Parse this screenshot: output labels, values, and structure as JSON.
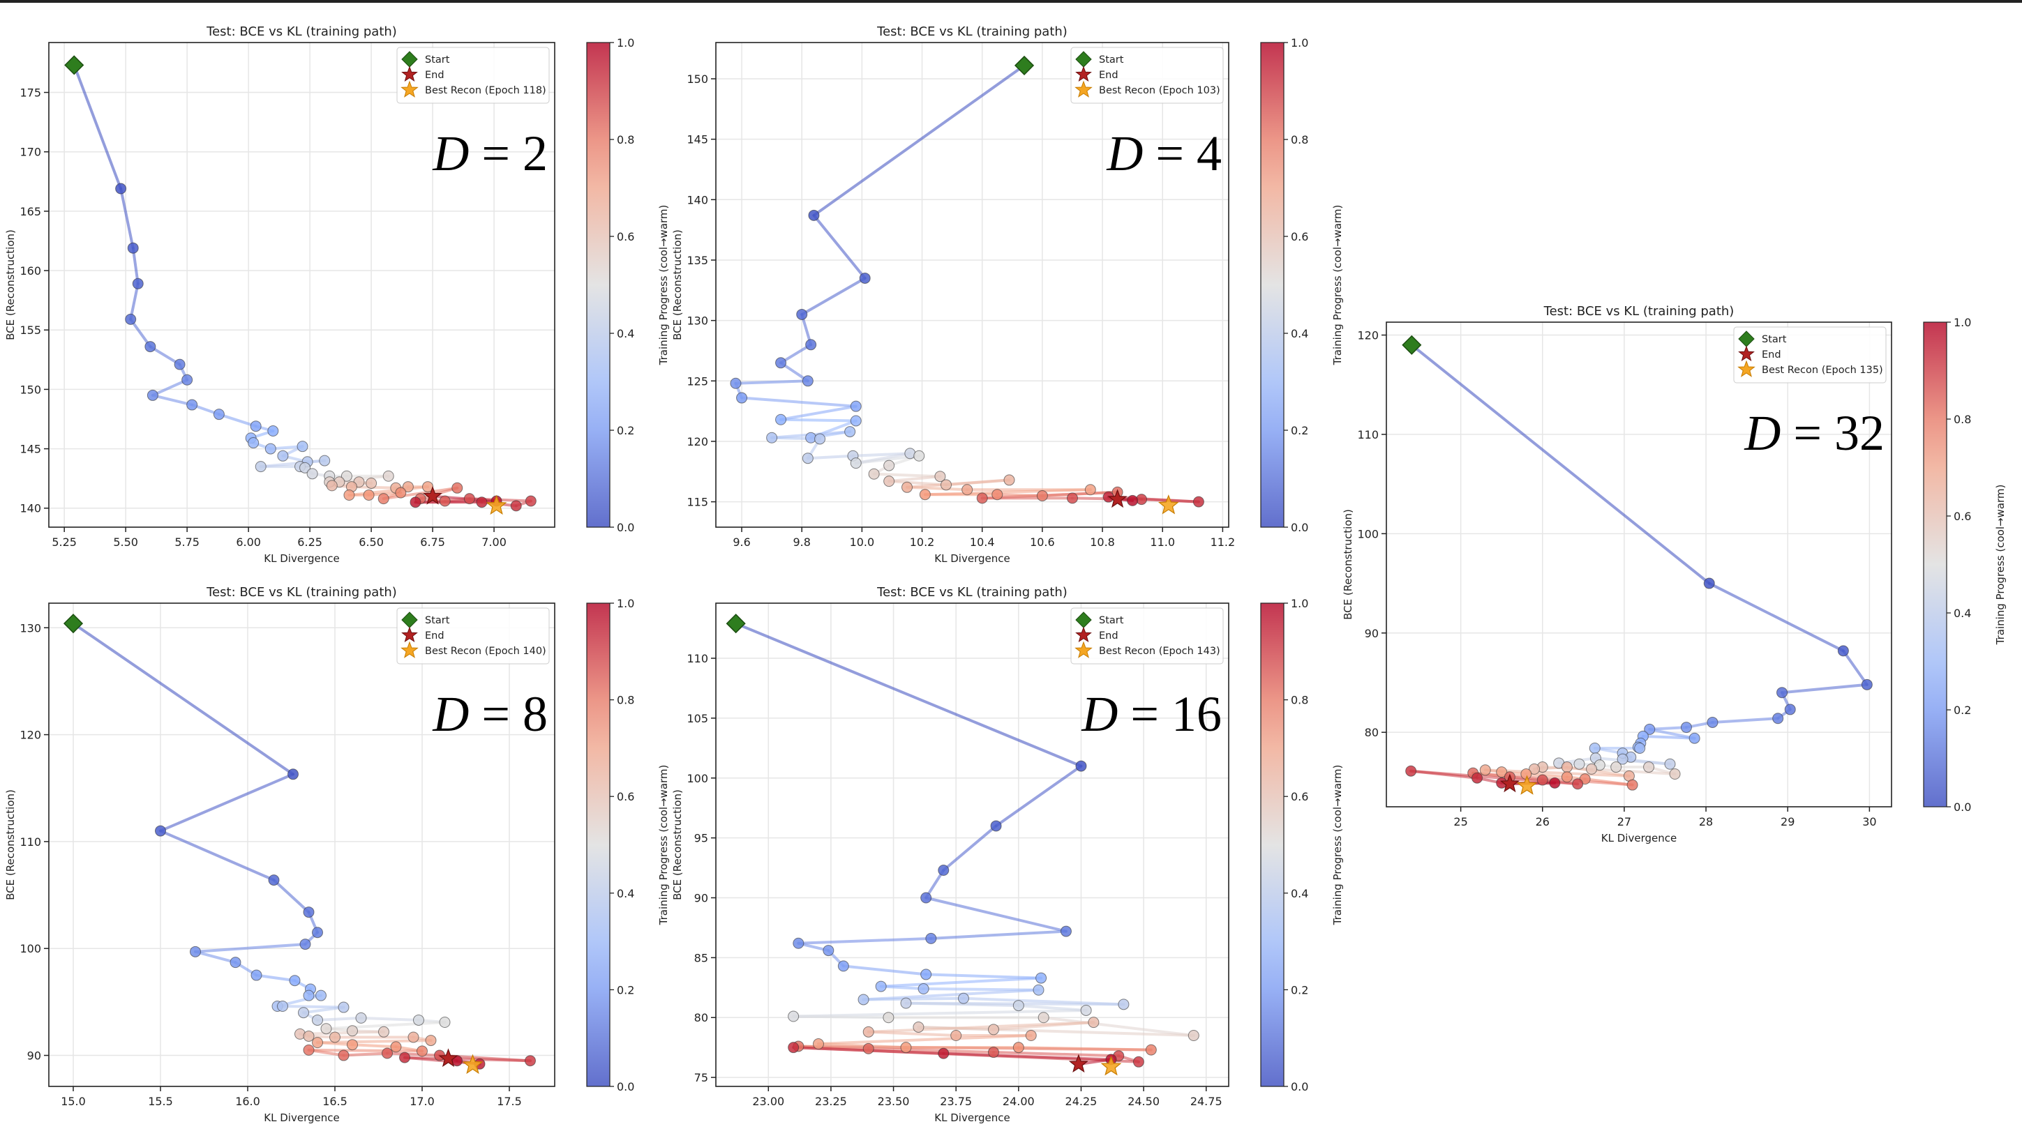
{
  "chart_data": [
    {
      "type": "line",
      "title": "Test: BCE vs KL (training path)",
      "xlabel": "KL Divergence",
      "ylabel": "BCE (Reconstruction)",
      "colorbar_label": "Training Progress (cool→warm)",
      "colorbar_ticks": [
        "0.0",
        "0.2",
        "0.4",
        "0.6",
        "0.8",
        "1.0"
      ],
      "colormap": "coolwarm",
      "label_var": "D",
      "label_eq": "= 2",
      "legend": {
        "start": "Start",
        "end": "End",
        "best": "Best Recon (Epoch 118)",
        "placement": "top-right"
      },
      "xlim": [
        5.187,
        7.247
      ],
      "ylim": [
        138.4,
        179.2
      ],
      "xticks": [
        5.25,
        5.5,
        5.75,
        6.0,
        6.25,
        6.5,
        6.75,
        7.0
      ],
      "xtick_labels": [
        "5.25",
        "5.50",
        "5.75",
        "6.00",
        "6.25",
        "6.50",
        "6.75",
        "7.00"
      ],
      "yticks": [
        140,
        145,
        150,
        155,
        160,
        165,
        170,
        175
      ],
      "grid": true,
      "best": [
        7.01,
        140.2
      ],
      "points": [
        [
          5.29,
          177.3
        ],
        [
          5.48,
          166.9
        ],
        [
          5.53,
          161.9
        ],
        [
          5.55,
          158.9
        ],
        [
          5.52,
          155.9
        ],
        [
          5.6,
          153.6
        ],
        [
          5.72,
          152.1
        ],
        [
          5.75,
          150.8
        ],
        [
          5.61,
          149.5
        ],
        [
          5.77,
          148.7
        ],
        [
          5.88,
          147.9
        ],
        [
          6.03,
          146.9
        ],
        [
          6.1,
          146.5
        ],
        [
          6.01,
          145.9
        ],
        [
          6.02,
          145.5
        ],
        [
          6.09,
          145.0
        ],
        [
          6.22,
          145.2
        ],
        [
          6.14,
          144.4
        ],
        [
          6.24,
          143.9
        ],
        [
          6.31,
          144.0
        ],
        [
          6.05,
          143.5
        ],
        [
          6.21,
          143.5
        ],
        [
          6.23,
          143.4
        ],
        [
          6.26,
          142.9
        ],
        [
          6.33,
          142.7
        ],
        [
          6.4,
          142.7
        ],
        [
          6.57,
          142.7
        ],
        [
          6.33,
          142.2
        ],
        [
          6.37,
          142.2
        ],
        [
          6.45,
          142.2
        ],
        [
          6.5,
          142.1
        ],
        [
          6.34,
          141.9
        ],
        [
          6.42,
          141.8
        ],
        [
          6.6,
          141.7
        ],
        [
          6.65,
          141.8
        ],
        [
          6.73,
          141.8
        ],
        [
          6.41,
          141.1
        ],
        [
          6.49,
          141.1
        ],
        [
          6.62,
          141.3
        ],
        [
          6.55,
          140.8
        ],
        [
          6.85,
          141.7
        ],
        [
          6.7,
          140.8
        ],
        [
          6.8,
          140.6
        ],
        [
          6.9,
          140.8
        ],
        [
          7.15,
          140.6
        ],
        [
          7.09,
          140.2
        ],
        [
          6.95,
          140.5
        ],
        [
          6.68,
          140.5
        ],
        [
          7.01,
          140.6
        ],
        [
          6.75,
          141.0
        ]
      ]
    },
    {
      "type": "line",
      "title": "Test: BCE vs KL (training path)",
      "xlabel": "KL Divergence",
      "ylabel": "BCE (Reconstruction)",
      "colorbar_label": "Training Progress (cool→warm)",
      "colorbar_ticks": [
        "0.0",
        "0.2",
        "0.4",
        "0.6",
        "0.8",
        "1.0"
      ],
      "colormap": "coolwarm",
      "label_var": "D",
      "label_eq": "= 4",
      "legend": {
        "start": "Start",
        "end": "End",
        "best": "Best Recon (Epoch 103)",
        "placement": "top-right"
      },
      "xlim": [
        9.514,
        11.22
      ],
      "ylim": [
        112.9,
        153.0
      ],
      "xticks": [
        9.6,
        9.8,
        10.0,
        10.2,
        10.4,
        10.6,
        10.8,
        11.0,
        11.2
      ],
      "xtick_labels": [
        "9.6",
        "9.8",
        "10.0",
        "10.2",
        "10.4",
        "10.6",
        "10.8",
        "11.0",
        "11.2"
      ],
      "yticks": [
        115,
        120,
        125,
        130,
        135,
        140,
        145,
        150
      ],
      "grid": true,
      "best": [
        11.02,
        114.7
      ],
      "points": [
        [
          10.54,
          151.1
        ],
        [
          9.84,
          138.7
        ],
        [
          10.01,
          133.5
        ],
        [
          9.8,
          130.5
        ],
        [
          9.83,
          128.0
        ],
        [
          9.73,
          126.5
        ],
        [
          9.82,
          125.0
        ],
        [
          9.58,
          124.8
        ],
        [
          9.6,
          123.6
        ],
        [
          9.98,
          122.9
        ],
        [
          9.73,
          121.8
        ],
        [
          9.98,
          121.7
        ],
        [
          9.83,
          120.3
        ],
        [
          9.96,
          120.8
        ],
        [
          9.7,
          120.3
        ],
        [
          9.86,
          120.2
        ],
        [
          9.82,
          118.6
        ],
        [
          9.97,
          118.8
        ],
        [
          10.16,
          119.0
        ],
        [
          9.98,
          118.2
        ],
        [
          10.19,
          118.8
        ],
        [
          10.09,
          118.0
        ],
        [
          10.04,
          117.3
        ],
        [
          10.26,
          117.1
        ],
        [
          10.09,
          116.7
        ],
        [
          10.28,
          116.4
        ],
        [
          10.49,
          116.8
        ],
        [
          10.15,
          116.2
        ],
        [
          10.35,
          116.0
        ],
        [
          10.76,
          116.0
        ],
        [
          10.21,
          115.6
        ],
        [
          10.45,
          115.6
        ],
        [
          10.6,
          115.5
        ],
        [
          10.85,
          115.8
        ],
        [
          10.4,
          115.3
        ],
        [
          10.7,
          115.3
        ],
        [
          10.93,
          115.2
        ],
        [
          11.12,
          115.0
        ],
        [
          10.82,
          115.4
        ],
        [
          10.9,
          115.1
        ],
        [
          10.85,
          115.2
        ]
      ]
    },
    {
      "type": "line",
      "title": "Test: BCE vs KL (training path)",
      "xlabel": "KL Divergence",
      "ylabel": "BCE (Reconstruction)",
      "colorbar_label": "Training Progress (cool→warm)",
      "colorbar_ticks": [
        "0.0",
        "0.2",
        "0.4",
        "0.6",
        "0.8",
        "1.0"
      ],
      "colormap": "coolwarm",
      "label_var": "D",
      "label_eq": "= 8",
      "legend": {
        "start": "Start",
        "end": "End",
        "best": "Best Recon (Epoch 140)",
        "placement": "top-right"
      },
      "xlim": [
        14.86,
        17.76
      ],
      "ylim": [
        87.1,
        132.3
      ],
      "xticks": [
        15.0,
        15.5,
        16.0,
        16.5,
        17.0,
        17.5
      ],
      "xtick_labels": [
        "15.0",
        "15.5",
        "16.0",
        "16.5",
        "17.0",
        "17.5"
      ],
      "yticks": [
        90,
        100,
        110,
        120,
        130
      ],
      "grid": true,
      "best": [
        17.29,
        89.1
      ],
      "points": [
        [
          15.0,
          130.4
        ],
        [
          16.26,
          116.3
        ],
        [
          15.5,
          111.0
        ],
        [
          16.15,
          106.4
        ],
        [
          16.35,
          103.4
        ],
        [
          16.4,
          101.5
        ],
        [
          16.33,
          100.4
        ],
        [
          15.7,
          99.7
        ],
        [
          15.93,
          98.7
        ],
        [
          16.05,
          97.5
        ],
        [
          16.27,
          97.0
        ],
        [
          16.36,
          96.2
        ],
        [
          16.35,
          95.6
        ],
        [
          16.42,
          95.6
        ],
        [
          16.17,
          94.6
        ],
        [
          16.2,
          94.6
        ],
        [
          16.55,
          94.5
        ],
        [
          16.32,
          94.0
        ],
        [
          16.4,
          93.3
        ],
        [
          16.65,
          93.5
        ],
        [
          16.98,
          93.3
        ],
        [
          17.13,
          93.1
        ],
        [
          16.45,
          92.5
        ],
        [
          16.6,
          92.3
        ],
        [
          16.78,
          92.2
        ],
        [
          16.3,
          92.0
        ],
        [
          16.35,
          91.8
        ],
        [
          16.5,
          91.7
        ],
        [
          16.95,
          91.7
        ],
        [
          17.05,
          91.4
        ],
        [
          16.4,
          91.2
        ],
        [
          16.6,
          91.0
        ],
        [
          16.85,
          90.8
        ],
        [
          17.0,
          90.4
        ],
        [
          16.35,
          90.5
        ],
        [
          16.55,
          90.0
        ],
        [
          16.8,
          90.2
        ],
        [
          17.1,
          90.0
        ],
        [
          17.62,
          89.5
        ],
        [
          16.9,
          89.8
        ],
        [
          17.33,
          89.2
        ],
        [
          17.2,
          89.5
        ],
        [
          17.15,
          89.7
        ]
      ]
    },
    {
      "type": "line",
      "title": "Test: BCE vs KL (training path)",
      "xlabel": "KL Divergence",
      "ylabel": "BCE (Reconstruction)",
      "colorbar_label": "Training Progress (cool→warm)",
      "colorbar_ticks": [
        "0.0",
        "0.2",
        "0.4",
        "0.6",
        "0.8",
        "1.0"
      ],
      "colormap": "coolwarm",
      "label_var": "D",
      "label_eq": "= 16",
      "legend": {
        "start": "Start",
        "end": "End",
        "best": "Best Recon (Epoch 143)",
        "placement": "top-right"
      },
      "xlim": [
        22.79,
        24.84
      ],
      "ylim": [
        74.25,
        114.6
      ],
      "xticks": [
        23.0,
        23.25,
        23.5,
        23.75,
        24.0,
        24.25,
        24.5,
        24.75
      ],
      "xtick_labels": [
        "23.00",
        "23.25",
        "23.50",
        "23.75",
        "24.00",
        "24.25",
        "24.50",
        "24.75"
      ],
      "yticks": [
        75,
        80,
        85,
        90,
        95,
        100,
        105,
        110
      ],
      "grid": true,
      "best": [
        24.37,
        75.9
      ],
      "points": [
        [
          22.87,
          112.9
        ],
        [
          24.25,
          101.0
        ],
        [
          23.91,
          96.0
        ],
        [
          23.7,
          92.3
        ],
        [
          23.63,
          90.0
        ],
        [
          24.19,
          87.2
        ],
        [
          23.65,
          86.6
        ],
        [
          23.12,
          86.2
        ],
        [
          23.24,
          85.6
        ],
        [
          23.3,
          84.3
        ],
        [
          23.63,
          83.6
        ],
        [
          24.09,
          83.3
        ],
        [
          23.45,
          82.6
        ],
        [
          23.62,
          82.4
        ],
        [
          24.08,
          82.3
        ],
        [
          23.38,
          81.5
        ],
        [
          23.78,
          81.6
        ],
        [
          24.42,
          81.1
        ],
        [
          23.55,
          81.2
        ],
        [
          24.0,
          81.0
        ],
        [
          24.27,
          80.6
        ],
        [
          23.1,
          80.1
        ],
        [
          23.48,
          80.0
        ],
        [
          24.1,
          80.0
        ],
        [
          24.7,
          78.5
        ],
        [
          23.6,
          79.2
        ],
        [
          23.9,
          79.0
        ],
        [
          24.3,
          79.6
        ],
        [
          23.4,
          78.8
        ],
        [
          23.75,
          78.5
        ],
        [
          24.05,
          78.5
        ],
        [
          23.2,
          77.8
        ],
        [
          23.55,
          77.5
        ],
        [
          24.0,
          77.5
        ],
        [
          24.53,
          77.3
        ],
        [
          23.12,
          77.6
        ],
        [
          23.4,
          77.4
        ],
        [
          23.9,
          77.1
        ],
        [
          24.4,
          76.8
        ],
        [
          24.48,
          76.3
        ],
        [
          23.1,
          77.5
        ],
        [
          23.7,
          77.0
        ],
        [
          24.37,
          76.5
        ],
        [
          24.24,
          76.1
        ]
      ]
    },
    {
      "type": "line",
      "title": "Test: BCE vs KL (training path)",
      "xlabel": "KL Divergence",
      "ylabel": "BCE (Reconstruction)",
      "colorbar_label": "Training Progress (cool→warm)",
      "colorbar_ticks": [
        "0.0",
        "0.2",
        "0.4",
        "0.6",
        "0.8",
        "1.0"
      ],
      "colormap": "coolwarm",
      "label_var": "D",
      "label_eq": "= 32",
      "legend": {
        "start": "Start",
        "end": "End",
        "best": "Best Recon (Epoch 135)",
        "placement": "top-right"
      },
      "xlim": [
        24.09,
        30.27
      ],
      "ylim": [
        72.5,
        121.3
      ],
      "xticks": [
        25,
        26,
        27,
        28,
        29,
        30
      ],
      "xtick_labels": [
        "25",
        "26",
        "27",
        "28",
        "29",
        "30"
      ],
      "yticks": [
        80,
        90,
        100,
        110,
        120
      ],
      "grid": true,
      "best": [
        25.81,
        74.6
      ],
      "points": [
        [
          24.4,
          119.0
        ],
        [
          28.04,
          95.0
        ],
        [
          29.68,
          88.2
        ],
        [
          29.97,
          84.8
        ],
        [
          28.93,
          84.0
        ],
        [
          29.03,
          82.3
        ],
        [
          28.88,
          81.4
        ],
        [
          28.08,
          81.0
        ],
        [
          27.76,
          80.5
        ],
        [
          27.31,
          80.3
        ],
        [
          27.86,
          79.4
        ],
        [
          27.23,
          79.6
        ],
        [
          27.2,
          78.9
        ],
        [
          27.17,
          78.5
        ],
        [
          27.19,
          78.4
        ],
        [
          26.64,
          78.4
        ],
        [
          26.98,
          77.9
        ],
        [
          27.08,
          77.5
        ],
        [
          26.98,
          77.3
        ],
        [
          27.56,
          76.8
        ],
        [
          26.65,
          77.4
        ],
        [
          26.2,
          76.9
        ],
        [
          26.45,
          76.8
        ],
        [
          26.7,
          76.7
        ],
        [
          26.9,
          76.5
        ],
        [
          27.3,
          76.5
        ],
        [
          27.62,
          75.8
        ],
        [
          26.6,
          76.3
        ],
        [
          26.0,
          76.5
        ],
        [
          25.9,
          76.3
        ],
        [
          26.3,
          76.5
        ],
        [
          27.06,
          75.6
        ],
        [
          25.3,
          76.2
        ],
        [
          25.5,
          76.0
        ],
        [
          25.8,
          75.8
        ],
        [
          26.3,
          75.5
        ],
        [
          26.52,
          75.3
        ],
        [
          27.1,
          74.7
        ],
        [
          25.15,
          75.9
        ],
        [
          25.6,
          75.5
        ],
        [
          26.0,
          75.2
        ],
        [
          26.43,
          74.8
        ],
        [
          24.39,
          76.1
        ],
        [
          25.2,
          75.4
        ],
        [
          25.5,
          74.9
        ],
        [
          26.15,
          74.9
        ],
        [
          25.6,
          74.8
        ]
      ]
    }
  ],
  "colors": {
    "start": "#2e7d1e",
    "end": "#b22222",
    "best": "#f5a623"
  }
}
